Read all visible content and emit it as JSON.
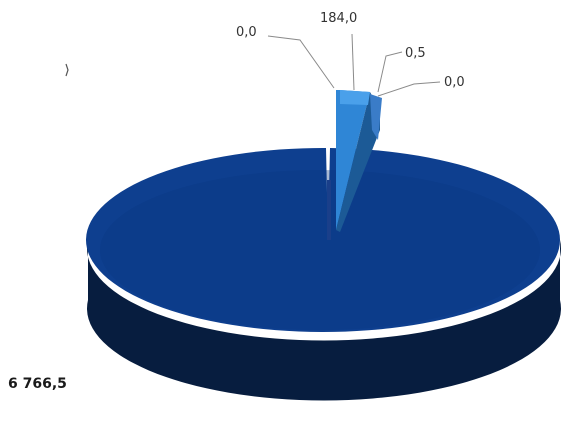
{
  "chart_data": {
    "type": "pie",
    "style": "3d-exploded",
    "slices": [
      {
        "label": "6 766,5",
        "value": 6766.5,
        "color": "#0e3f8f",
        "side_color": "#071d3f"
      },
      {
        "label": "0,0",
        "value": 0.0,
        "color": "#1a3f8a",
        "side_color": "#0b1f45"
      },
      {
        "label": "184,0",
        "value": 184.0,
        "color": "#2f86d6",
        "side_color": "#1c5a96"
      },
      {
        "label": "0,5",
        "value": 0.5,
        "color": "#3a7cc8",
        "side_color": "#214f87"
      },
      {
        "label": "0,0",
        "value": 0.0,
        "color": "#4a8ad0",
        "side_color": "#2a5c95"
      }
    ],
    "legend": "none"
  }
}
